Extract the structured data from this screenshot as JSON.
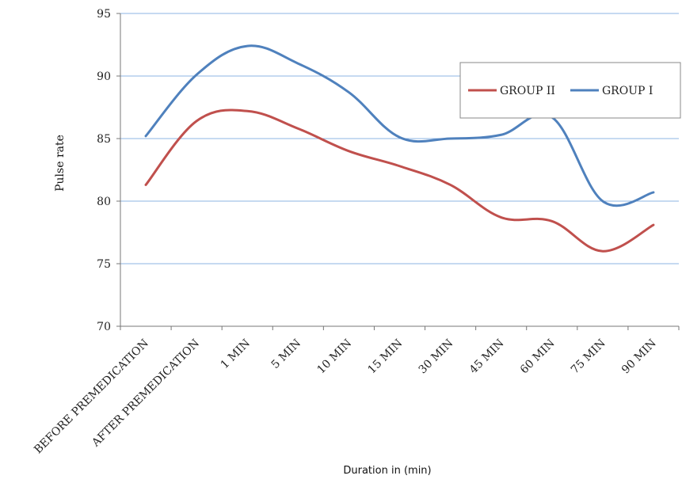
{
  "chart_data": {
    "type": "line",
    "categories": [
      "BEFORE PREMEDICATION",
      "AFTER PREMEDICATION",
      "1 MIN",
      "5 MIN",
      "10 MIN",
      "15 MIN",
      "30 MIN",
      "45 MIN",
      "60 MIN",
      "75 MIN",
      "90 MIN"
    ],
    "series": [
      {
        "name": "GROUP II",
        "color": "#c0504d",
        "values": [
          81.3,
          86.4,
          87.2,
          85.8,
          84.0,
          82.8,
          81.3,
          78.7,
          78.4,
          76.0,
          78.1
        ]
      },
      {
        "name": "GROUP I",
        "color": "#4f81bd",
        "values": [
          85.2,
          90.1,
          92.4,
          91.0,
          88.7,
          85.1,
          85.0,
          85.3,
          86.7,
          80.0,
          80.7
        ]
      }
    ],
    "title": "",
    "xlabel": "Duration in (min)",
    "ylabel": "Pulse rate",
    "ylim": [
      70,
      95
    ],
    "yticks": [
      70,
      75,
      80,
      85,
      90,
      95
    ],
    "grid": true,
    "legend_position": "top-right",
    "gridline_color": "#8eb4e3"
  }
}
